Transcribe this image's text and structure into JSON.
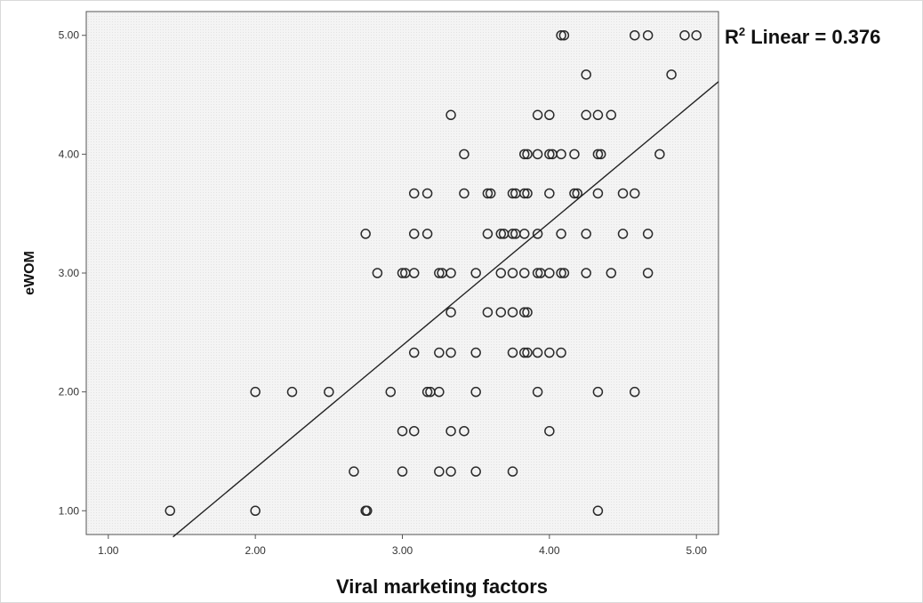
{
  "chart_data": {
    "type": "scatter",
    "title": "",
    "xlabel": "Viral marketing factors",
    "ylabel": "eWOM",
    "xlim": [
      0.85,
      5.15
    ],
    "ylim": [
      0.8,
      5.2
    ],
    "x_ticks": [
      {
        "value": 1,
        "label": "1.00"
      },
      {
        "value": 2,
        "label": "2.00"
      },
      {
        "value": 3,
        "label": "3.00"
      },
      {
        "value": 4,
        "label": "4.00"
      },
      {
        "value": 5,
        "label": "5.00"
      }
    ],
    "y_ticks": [
      {
        "value": 1,
        "label": "1.00"
      },
      {
        "value": 2,
        "label": "2.00"
      },
      {
        "value": 3,
        "label": "3.00"
      },
      {
        "value": 4,
        "label": "4.00"
      },
      {
        "value": 5,
        "label": "5.00"
      }
    ],
    "grid": false,
    "legend": "none",
    "fit_line": {
      "type": "linear",
      "r2_prefix": "R",
      "r2_superscript": "2",
      "r2_label": " Linear = 0.376",
      "start": [
        1.44,
        0.78
      ],
      "end": [
        5.15,
        4.61
      ]
    },
    "points": [
      {
        "x": 1.42,
        "y": 1.0
      },
      {
        "x": 2.0,
        "y": 1.0
      },
      {
        "x": 2.75,
        "y": 1.0
      },
      {
        "x": 2.76,
        "y": 1.0
      },
      {
        "x": 4.33,
        "y": 1.0
      },
      {
        "x": 2.67,
        "y": 1.33
      },
      {
        "x": 3.0,
        "y": 1.33
      },
      {
        "x": 3.25,
        "y": 1.33
      },
      {
        "x": 3.33,
        "y": 1.33
      },
      {
        "x": 3.5,
        "y": 1.33
      },
      {
        "x": 3.75,
        "y": 1.33
      },
      {
        "x": 3.0,
        "y": 1.67
      },
      {
        "x": 3.08,
        "y": 1.67
      },
      {
        "x": 3.33,
        "y": 1.67
      },
      {
        "x": 3.42,
        "y": 1.67
      },
      {
        "x": 4.0,
        "y": 1.67
      },
      {
        "x": 2.0,
        "y": 2.0
      },
      {
        "x": 2.25,
        "y": 2.0
      },
      {
        "x": 2.5,
        "y": 2.0
      },
      {
        "x": 2.92,
        "y": 2.0
      },
      {
        "x": 3.17,
        "y": 2.0
      },
      {
        "x": 3.19,
        "y": 2.0
      },
      {
        "x": 3.25,
        "y": 2.0
      },
      {
        "x": 3.5,
        "y": 2.0
      },
      {
        "x": 3.92,
        "y": 2.0
      },
      {
        "x": 4.33,
        "y": 2.0
      },
      {
        "x": 4.58,
        "y": 2.0
      },
      {
        "x": 3.08,
        "y": 2.33
      },
      {
        "x": 3.25,
        "y": 2.33
      },
      {
        "x": 3.33,
        "y": 2.33
      },
      {
        "x": 3.5,
        "y": 2.33
      },
      {
        "x": 3.75,
        "y": 2.33
      },
      {
        "x": 3.83,
        "y": 2.33
      },
      {
        "x": 3.85,
        "y": 2.33
      },
      {
        "x": 3.92,
        "y": 2.33
      },
      {
        "x": 4.0,
        "y": 2.33
      },
      {
        "x": 4.08,
        "y": 2.33
      },
      {
        "x": 3.33,
        "y": 2.67
      },
      {
        "x": 3.58,
        "y": 2.67
      },
      {
        "x": 3.67,
        "y": 2.67
      },
      {
        "x": 3.75,
        "y": 2.67
      },
      {
        "x": 3.83,
        "y": 2.67
      },
      {
        "x": 3.85,
        "y": 2.67
      },
      {
        "x": 2.83,
        "y": 3.0
      },
      {
        "x": 3.0,
        "y": 3.0
      },
      {
        "x": 3.02,
        "y": 3.0
      },
      {
        "x": 3.08,
        "y": 3.0
      },
      {
        "x": 3.25,
        "y": 3.0
      },
      {
        "x": 3.27,
        "y": 3.0
      },
      {
        "x": 3.33,
        "y": 3.0
      },
      {
        "x": 3.5,
        "y": 3.0
      },
      {
        "x": 3.67,
        "y": 3.0
      },
      {
        "x": 3.75,
        "y": 3.0
      },
      {
        "x": 3.83,
        "y": 3.0
      },
      {
        "x": 3.92,
        "y": 3.0
      },
      {
        "x": 3.94,
        "y": 3.0
      },
      {
        "x": 4.0,
        "y": 3.0
      },
      {
        "x": 4.08,
        "y": 3.0
      },
      {
        "x": 4.1,
        "y": 3.0
      },
      {
        "x": 4.25,
        "y": 3.0
      },
      {
        "x": 4.42,
        "y": 3.0
      },
      {
        "x": 4.67,
        "y": 3.0
      },
      {
        "x": 2.75,
        "y": 3.33
      },
      {
        "x": 3.08,
        "y": 3.33
      },
      {
        "x": 3.17,
        "y": 3.33
      },
      {
        "x": 3.58,
        "y": 3.33
      },
      {
        "x": 3.67,
        "y": 3.33
      },
      {
        "x": 3.69,
        "y": 3.33
      },
      {
        "x": 3.75,
        "y": 3.33
      },
      {
        "x": 3.77,
        "y": 3.33
      },
      {
        "x": 3.83,
        "y": 3.33
      },
      {
        "x": 3.92,
        "y": 3.33
      },
      {
        "x": 4.08,
        "y": 3.33
      },
      {
        "x": 4.25,
        "y": 3.33
      },
      {
        "x": 4.5,
        "y": 3.33
      },
      {
        "x": 4.67,
        "y": 3.33
      },
      {
        "x": 3.08,
        "y": 3.67
      },
      {
        "x": 3.17,
        "y": 3.67
      },
      {
        "x": 3.42,
        "y": 3.67
      },
      {
        "x": 3.58,
        "y": 3.67
      },
      {
        "x": 3.6,
        "y": 3.67
      },
      {
        "x": 3.75,
        "y": 3.67
      },
      {
        "x": 3.77,
        "y": 3.67
      },
      {
        "x": 3.83,
        "y": 3.67
      },
      {
        "x": 3.85,
        "y": 3.67
      },
      {
        "x": 4.0,
        "y": 3.67
      },
      {
        "x": 4.17,
        "y": 3.67
      },
      {
        "x": 4.19,
        "y": 3.67
      },
      {
        "x": 4.33,
        "y": 3.67
      },
      {
        "x": 4.5,
        "y": 3.67
      },
      {
        "x": 4.58,
        "y": 3.67
      },
      {
        "x": 3.42,
        "y": 4.0
      },
      {
        "x": 3.83,
        "y": 4.0
      },
      {
        "x": 3.85,
        "y": 4.0
      },
      {
        "x": 3.92,
        "y": 4.0
      },
      {
        "x": 4.0,
        "y": 4.0
      },
      {
        "x": 4.02,
        "y": 4.0
      },
      {
        "x": 4.08,
        "y": 4.0
      },
      {
        "x": 4.17,
        "y": 4.0
      },
      {
        "x": 4.33,
        "y": 4.0
      },
      {
        "x": 4.35,
        "y": 4.0
      },
      {
        "x": 4.75,
        "y": 4.0
      },
      {
        "x": 3.33,
        "y": 4.33
      },
      {
        "x": 3.92,
        "y": 4.33
      },
      {
        "x": 4.0,
        "y": 4.33
      },
      {
        "x": 4.25,
        "y": 4.33
      },
      {
        "x": 4.33,
        "y": 4.33
      },
      {
        "x": 4.42,
        "y": 4.33
      },
      {
        "x": 4.25,
        "y": 4.67
      },
      {
        "x": 4.83,
        "y": 4.67
      },
      {
        "x": 4.08,
        "y": 5.0
      },
      {
        "x": 4.1,
        "y": 5.0
      },
      {
        "x": 4.58,
        "y": 5.0
      },
      {
        "x": 4.67,
        "y": 5.0
      },
      {
        "x": 4.92,
        "y": 5.0
      },
      {
        "x": 5.0,
        "y": 5.0
      }
    ]
  },
  "colors": {
    "plot_background": "#f2f2f2",
    "marker_stroke": "#2a2a2a",
    "fit_line": "#222222",
    "axis": "#555555"
  }
}
